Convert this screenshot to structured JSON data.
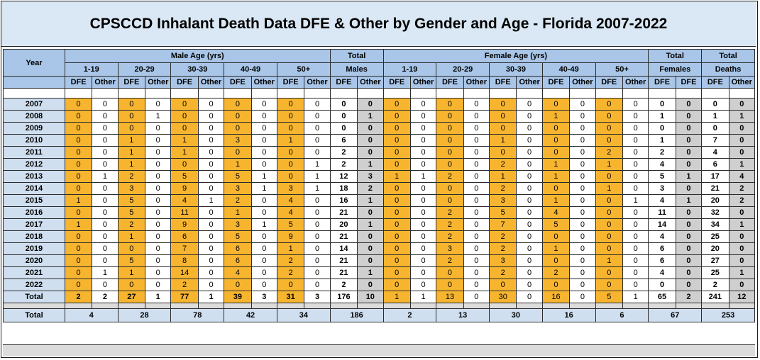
{
  "title": "CPSCCD Inhalant Death Data DFE & Other by Gender and Age - Florida 2007-2022",
  "headers": {
    "year": "Year",
    "male_age": "Male Age (yrs)",
    "female_age": "Female Age (yrs)",
    "total_males_1": "Total",
    "total_males_2": "Males",
    "total_females_1": "Total",
    "total_females_2": "Females",
    "total_deaths_1": "Total",
    "total_deaths_2": "Deaths",
    "age_groups": [
      "1-19",
      "20-29",
      "30-39",
      "40-49",
      "50+"
    ],
    "dfe": "DFE",
    "other": "Other"
  },
  "total_row_label": "Total",
  "grand_row_label": "Total",
  "rows": [
    {
      "year": "2007",
      "m": [
        "0",
        "0",
        "0",
        "0",
        "0",
        "0",
        "0",
        "0",
        "0",
        "0"
      ],
      "tm": [
        "0",
        "0"
      ],
      "f": [
        "0",
        "0",
        "0",
        "0",
        "0",
        "0",
        "0",
        "0",
        "0",
        "0"
      ],
      "tf": [
        "0",
        "0"
      ],
      "td": [
        "0",
        "0"
      ]
    },
    {
      "year": "2008",
      "m": [
        "0",
        "0",
        "0",
        "1",
        "0",
        "0",
        "0",
        "0",
        "0",
        "0"
      ],
      "tm": [
        "0",
        "1"
      ],
      "f": [
        "0",
        "0",
        "0",
        "0",
        "0",
        "0",
        "1",
        "0",
        "0",
        "0"
      ],
      "tf": [
        "1",
        "0"
      ],
      "td": [
        "1",
        "1"
      ]
    },
    {
      "year": "2009",
      "m": [
        "0",
        "0",
        "0",
        "0",
        "0",
        "0",
        "0",
        "0",
        "0",
        "0"
      ],
      "tm": [
        "0",
        "0"
      ],
      "f": [
        "0",
        "0",
        "0",
        "0",
        "0",
        "0",
        "0",
        "0",
        "0",
        "0"
      ],
      "tf": [
        "0",
        "0"
      ],
      "td": [
        "0",
        "0"
      ]
    },
    {
      "year": "2010",
      "m": [
        "0",
        "0",
        "1",
        "0",
        "1",
        "0",
        "3",
        "0",
        "1",
        "0"
      ],
      "tm": [
        "6",
        "0"
      ],
      "f": [
        "0",
        "0",
        "0",
        "0",
        "1",
        "0",
        "0",
        "0",
        "0",
        "0"
      ],
      "tf": [
        "1",
        "0"
      ],
      "td": [
        "7",
        "0"
      ]
    },
    {
      "year": "2011",
      "m": [
        "0",
        "0",
        "1",
        "0",
        "1",
        "0",
        "0",
        "0",
        "0",
        "0"
      ],
      "tm": [
        "2",
        "0"
      ],
      "f": [
        "0",
        "0",
        "0",
        "0",
        "0",
        "0",
        "0",
        "0",
        "2",
        "0"
      ],
      "tf": [
        "2",
        "0"
      ],
      "td": [
        "4",
        "0"
      ]
    },
    {
      "year": "2012",
      "m": [
        "0",
        "0",
        "1",
        "0",
        "0",
        "0",
        "1",
        "0",
        "0",
        "1"
      ],
      "tm": [
        "2",
        "1"
      ],
      "f": [
        "0",
        "0",
        "0",
        "0",
        "2",
        "0",
        "1",
        "0",
        "1",
        "0"
      ],
      "tf": [
        "4",
        "0"
      ],
      "td": [
        "6",
        "1"
      ]
    },
    {
      "year": "2013",
      "m": [
        "0",
        "1",
        "2",
        "0",
        "5",
        "0",
        "5",
        "1",
        "0",
        "1"
      ],
      "tm": [
        "12",
        "3"
      ],
      "f": [
        "1",
        "1",
        "2",
        "0",
        "1",
        "0",
        "1",
        "0",
        "0",
        "0"
      ],
      "tf": [
        "5",
        "1"
      ],
      "td": [
        "17",
        "4"
      ]
    },
    {
      "year": "2014",
      "m": [
        "0",
        "0",
        "3",
        "0",
        "9",
        "0",
        "3",
        "1",
        "3",
        "1"
      ],
      "tm": [
        "18",
        "2"
      ],
      "f": [
        "0",
        "0",
        "0",
        "0",
        "2",
        "0",
        "0",
        "0",
        "1",
        "0"
      ],
      "tf": [
        "3",
        "0"
      ],
      "td": [
        "21",
        "2"
      ]
    },
    {
      "year": "2015",
      "m": [
        "1",
        "0",
        "5",
        "0",
        "4",
        "1",
        "2",
        "0",
        "4",
        "0"
      ],
      "tm": [
        "16",
        "1"
      ],
      "f": [
        "0",
        "0",
        "0",
        "0",
        "3",
        "0",
        "1",
        "0",
        "0",
        "1"
      ],
      "tf": [
        "4",
        "1"
      ],
      "td": [
        "20",
        "2"
      ]
    },
    {
      "year": "2016",
      "m": [
        "0",
        "0",
        "5",
        "0",
        "11",
        "0",
        "1",
        "0",
        "4",
        "0"
      ],
      "tm": [
        "21",
        "0"
      ],
      "f": [
        "0",
        "0",
        "2",
        "0",
        "5",
        "0",
        "4",
        "0",
        "0",
        "0"
      ],
      "tf": [
        "11",
        "0"
      ],
      "td": [
        "32",
        "0"
      ]
    },
    {
      "year": "2017",
      "m": [
        "1",
        "0",
        "2",
        "0",
        "9",
        "0",
        "3",
        "1",
        "5",
        "0"
      ],
      "tm": [
        "20",
        "1"
      ],
      "f": [
        "0",
        "0",
        "2",
        "0",
        "7",
        "0",
        "5",
        "0",
        "0",
        "0"
      ],
      "tf": [
        "14",
        "0"
      ],
      "td": [
        "34",
        "1"
      ]
    },
    {
      "year": "2018",
      "m": [
        "0",
        "0",
        "1",
        "0",
        "6",
        "0",
        "5",
        "0",
        "9",
        "0"
      ],
      "tm": [
        "21",
        "0"
      ],
      "f": [
        "0",
        "0",
        "2",
        "0",
        "2",
        "0",
        "0",
        "0",
        "0",
        "0"
      ],
      "tf": [
        "4",
        "0"
      ],
      "td": [
        "25",
        "0"
      ]
    },
    {
      "year": "2019",
      "m": [
        "0",
        "0",
        "0",
        "0",
        "7",
        "0",
        "6",
        "0",
        "1",
        "0"
      ],
      "tm": [
        "14",
        "0"
      ],
      "f": [
        "0",
        "0",
        "3",
        "0",
        "2",
        "0",
        "1",
        "0",
        "0",
        "0"
      ],
      "tf": [
        "6",
        "0"
      ],
      "td": [
        "20",
        "0"
      ]
    },
    {
      "year": "2020",
      "m": [
        "0",
        "0",
        "5",
        "0",
        "8",
        "0",
        "6",
        "0",
        "2",
        "0"
      ],
      "tm": [
        "21",
        "0"
      ],
      "f": [
        "0",
        "0",
        "2",
        "0",
        "3",
        "0",
        "0",
        "0",
        "1",
        "0"
      ],
      "tf": [
        "6",
        "0"
      ],
      "td": [
        "27",
        "0"
      ]
    },
    {
      "year": "2021",
      "m": [
        "0",
        "1",
        "1",
        "0",
        "14",
        "0",
        "4",
        "0",
        "2",
        "0"
      ],
      "tm": [
        "21",
        "1"
      ],
      "f": [
        "0",
        "0",
        "0",
        "0",
        "2",
        "0",
        "2",
        "0",
        "0",
        "0"
      ],
      "tf": [
        "4",
        "0"
      ],
      "td": [
        "25",
        "1"
      ]
    },
    {
      "year": "2022",
      "m": [
        "0",
        "0",
        "0",
        "0",
        "2",
        "0",
        "0",
        "0",
        "0",
        "0"
      ],
      "tm": [
        "2",
        "0"
      ],
      "f": [
        "0",
        "0",
        "0",
        "0",
        "0",
        "0",
        "0",
        "0",
        "0",
        "0"
      ],
      "tf": [
        "0",
        "0"
      ],
      "td": [
        "2",
        "0"
      ]
    }
  ],
  "totals": {
    "m": [
      "2",
      "2",
      "27",
      "1",
      "77",
      "1",
      "39",
      "3",
      "31",
      "3"
    ],
    "tm": [
      "176",
      "10"
    ],
    "f": [
      "1",
      "1",
      "13",
      "0",
      "30",
      "0",
      "16",
      "0",
      "5",
      "1"
    ],
    "tf": [
      "65",
      "2"
    ],
    "td": [
      "241",
      "12"
    ]
  },
  "grand": {
    "m": [
      "4",
      "28",
      "78",
      "42",
      "34"
    ],
    "tm": "186",
    "f": [
      "2",
      "13",
      "30",
      "16",
      "6"
    ],
    "tf": "67",
    "td": "253"
  }
}
